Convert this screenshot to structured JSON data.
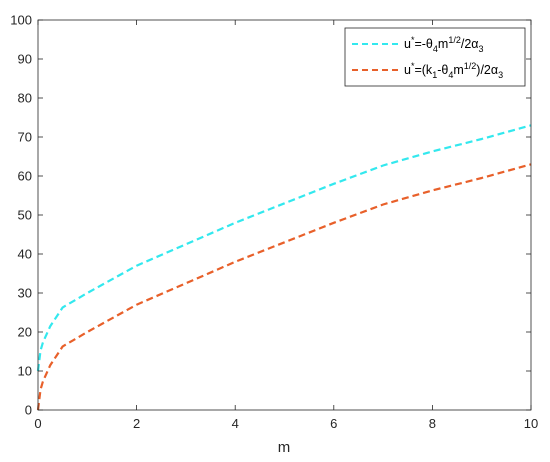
{
  "chart_data": {
    "type": "line",
    "title": "",
    "xlabel": "m",
    "ylabel": "",
    "xlim": [
      0,
      10
    ],
    "ylim": [
      0,
      100
    ],
    "x_ticks": [
      0,
      2,
      4,
      6,
      8,
      10
    ],
    "y_ticks": [
      0,
      10,
      20,
      30,
      40,
      50,
      60,
      70,
      80,
      90,
      100
    ],
    "x_tick_labels": [
      "0",
      "2",
      "4",
      "6",
      "8",
      "10"
    ],
    "y_tick_labels": [
      "0",
      "10",
      "20",
      "30",
      "40",
      "50",
      "60",
      "70",
      "80",
      "90",
      "100"
    ],
    "grid": false,
    "legend_position": "top-right",
    "x": [
      0,
      0.05,
      0.1,
      0.25,
      0.5,
      1,
      2,
      3,
      4,
      5,
      6,
      7,
      8,
      9,
      10
    ],
    "series": [
      {
        "name": "u*=-θ4m1/2/2α3",
        "color": "#33e8ee",
        "style": "dashed",
        "values": [
          10,
          15.2,
          17.3,
          21.5,
          26.3,
          30,
          37,
          42.5,
          48,
          53,
          58,
          62.7,
          66.3,
          69.5,
          73
        ]
      },
      {
        "name": "u*=(k1-θ4m1/2)/2α3",
        "color": "#e8602a",
        "style": "dashed",
        "values": [
          0,
          5.2,
          7.3,
          11.5,
          16.3,
          20,
          27,
          32.5,
          38,
          43,
          48,
          52.7,
          56.3,
          59.5,
          63
        ]
      }
    ],
    "legend": [
      {
        "prefix": "u",
        "sup1": "*",
        "mid": "=-θ",
        "sub1": "4",
        "mid2": "m",
        "sup2": "1/2",
        "mid3": "/2α",
        "sub2": "3",
        "tail": ""
      },
      {
        "prefix": "u",
        "sup1": "*",
        "mid": "=(k",
        "sub1": "1",
        "mid2": "-θ",
        "sub_theta": "4",
        "mid2b": "m",
        "sup2": "1/2",
        "mid3": ")/2α",
        "sub2": "3",
        "tail": ""
      }
    ]
  }
}
